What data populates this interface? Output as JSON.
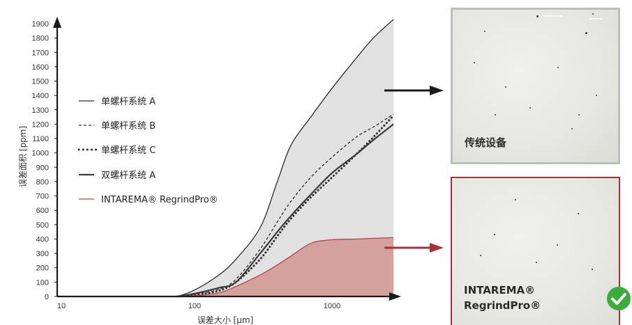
{
  "chart_data": {
    "type": "area",
    "xlabel": "误差大小 [μm]",
    "ylabel": "误差面积 [ppm]",
    "x_scale": "log",
    "xlim": [
      10,
      3000
    ],
    "ylim": [
      0,
      1900
    ],
    "x_ticks": [
      10,
      100,
      1000
    ],
    "y_ticks": [
      0,
      100,
      200,
      300,
      400,
      500,
      600,
      700,
      800,
      900,
      1000,
      1100,
      1200,
      1300,
      1400,
      1500,
      1600,
      1700,
      1800,
      1900
    ],
    "legend_position": "left",
    "grid": false,
    "series": [
      {
        "name": "单螺杆系统 A",
        "style": "solid",
        "color": "#2b2b2b",
        "points": [
          [
            75,
            0
          ],
          [
            100,
            45
          ],
          [
            150,
            150
          ],
          [
            200,
            260
          ],
          [
            300,
            480
          ],
          [
            400,
            800
          ],
          [
            500,
            1050
          ],
          [
            700,
            1250
          ],
          [
            1000,
            1450
          ],
          [
            1500,
            1660
          ],
          [
            2000,
            1800
          ],
          [
            2800,
            1930
          ]
        ]
      },
      {
        "name": "单螺杆系统 B",
        "style": "dashed",
        "color": "#2b2b2b",
        "points": [
          [
            75,
            0
          ],
          [
            100,
            15
          ],
          [
            150,
            50
          ],
          [
            200,
            120
          ],
          [
            300,
            330
          ],
          [
            400,
            520
          ],
          [
            500,
            660
          ],
          [
            700,
            830
          ],
          [
            1000,
            970
          ],
          [
            1500,
            1110
          ],
          [
            2000,
            1180
          ],
          [
            2800,
            1270
          ]
        ]
      },
      {
        "name": "单螺杆系统 C",
        "style": "dotted",
        "color": "#2b2b2b",
        "points": [
          [
            75,
            0
          ],
          [
            100,
            10
          ],
          [
            150,
            40
          ],
          [
            200,
            100
          ],
          [
            300,
            260
          ],
          [
            400,
            420
          ],
          [
            500,
            540
          ],
          [
            700,
            690
          ],
          [
            1000,
            830
          ],
          [
            1500,
            990
          ],
          [
            2000,
            1110
          ],
          [
            2800,
            1260
          ]
        ]
      },
      {
        "name": "双螺杆系统 A",
        "style": "solid-thick",
        "color": "#3a3a3a",
        "points": [
          [
            75,
            0
          ],
          [
            100,
            20
          ],
          [
            150,
            60
          ],
          [
            200,
            100
          ],
          [
            300,
            300
          ],
          [
            400,
            450
          ],
          [
            500,
            560
          ],
          [
            700,
            710
          ],
          [
            1000,
            860
          ],
          [
            1500,
            990
          ],
          [
            2000,
            1090
          ],
          [
            2800,
            1200
          ]
        ]
      },
      {
        "name": "INTAREMA® RegrindPro®",
        "style": "solid",
        "color": "#b0484d",
        "fill": "#d4a19c",
        "points": [
          [
            75,
            0
          ],
          [
            100,
            5
          ],
          [
            150,
            25
          ],
          [
            200,
            70
          ],
          [
            300,
            150
          ],
          [
            400,
            220
          ],
          [
            500,
            280
          ],
          [
            700,
            370
          ],
          [
            1000,
            395
          ],
          [
            1500,
            400
          ],
          [
            2000,
            405
          ],
          [
            2800,
            410
          ]
        ]
      }
    ]
  },
  "panels": {
    "traditional": {
      "label": "传统设备"
    },
    "intarema": {
      "label_line1": "INTAREMA®",
      "label_line2": "RegrindPro®"
    }
  },
  "colors": {
    "envelope_fill": "#e1e1e1",
    "axis": "#1a1a1a",
    "arrow_dark": "#1a1a1a",
    "arrow_red": "#a8313a",
    "check_green": "#3aad3a"
  },
  "icons": {
    "check": "check-badge-icon"
  }
}
